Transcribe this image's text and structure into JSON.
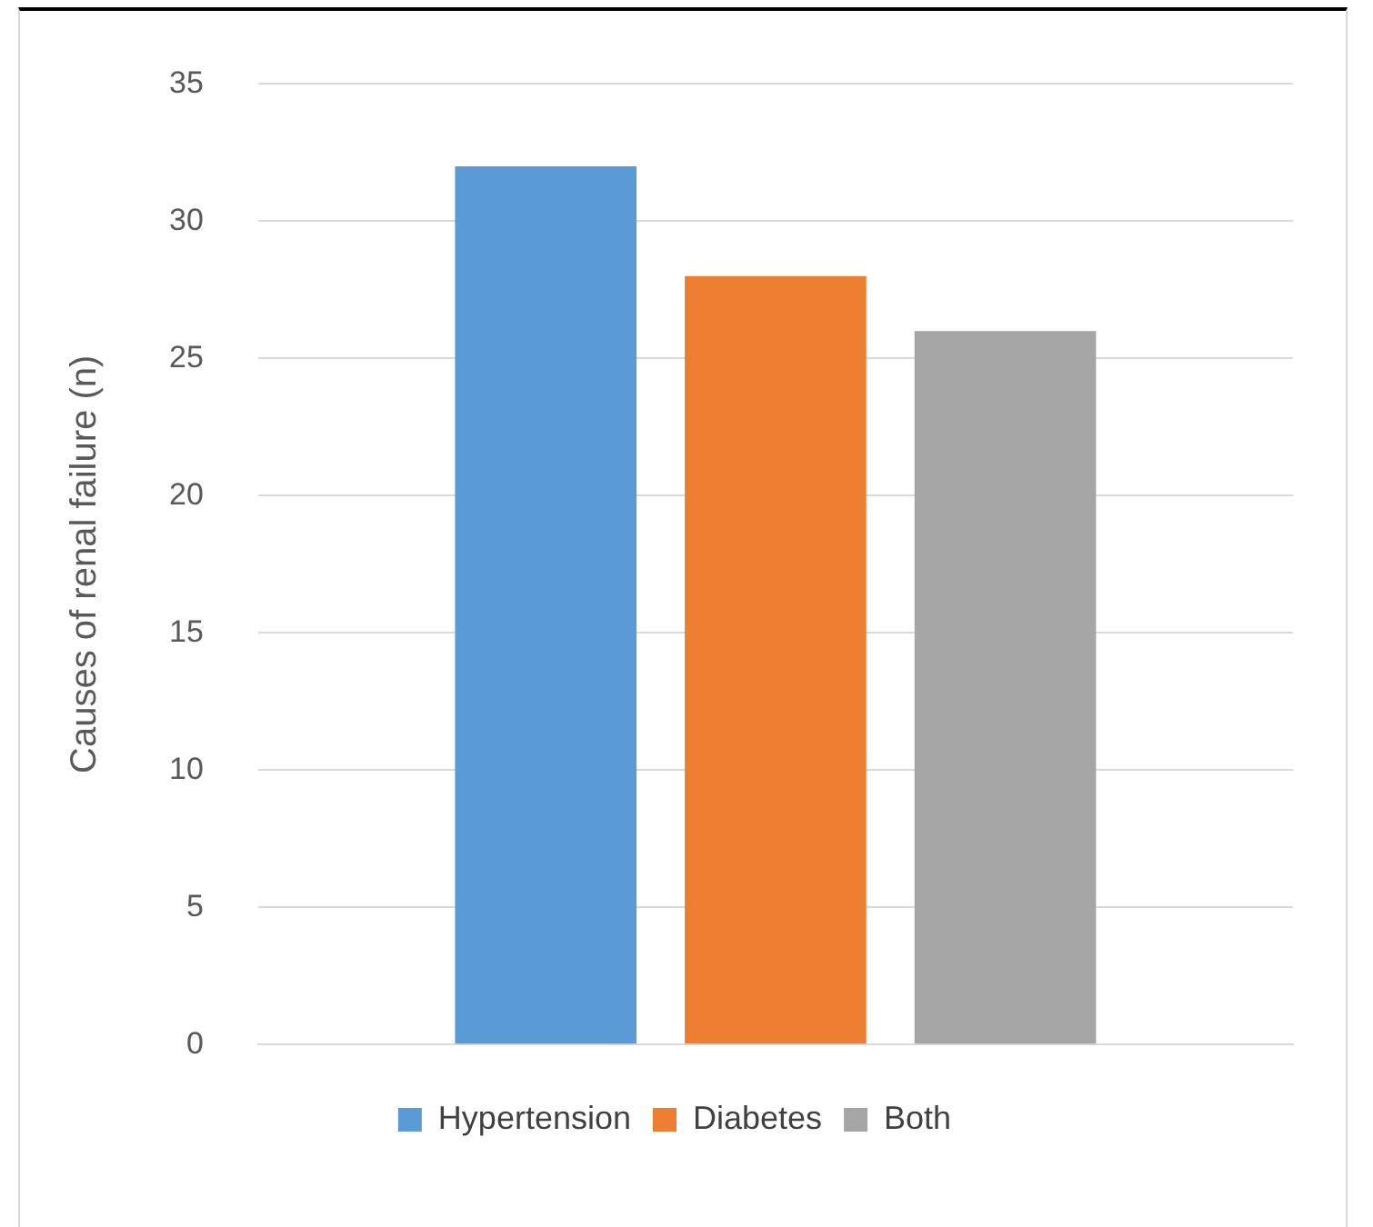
{
  "chart_data": {
    "type": "bar",
    "ylabel": "Causes of renal failure (n)",
    "categories": [
      null
    ],
    "series": [
      {
        "name": "Hypertension",
        "color": "#5b9bd5",
        "values": [
          32
        ]
      },
      {
        "name": "Diabetes",
        "color": "#ed7d31",
        "values": [
          28
        ]
      },
      {
        "name": "Both",
        "color": "#a5a5a5",
        "values": [
          26
        ]
      }
    ],
    "ylim": [
      0,
      35
    ],
    "yticks": [
      0,
      5,
      10,
      15,
      20,
      25,
      30,
      35
    ],
    "grid": "y",
    "legend": "bottom"
  }
}
